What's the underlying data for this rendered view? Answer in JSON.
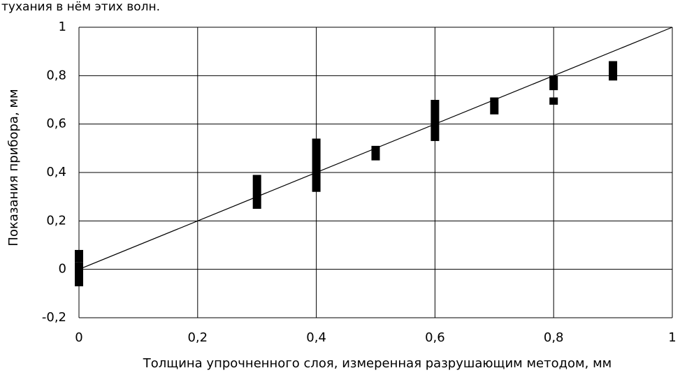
{
  "header_fragment": "тухания в нём этих волн.",
  "chart_data": {
    "type": "rangebar",
    "xlabel": "Толщина упрочненного слоя, измеренная разрушающим методом, мм",
    "ylabel": "Показания прибора, мм",
    "xlim": [
      0,
      1
    ],
    "ylim": [
      -0.2,
      1
    ],
    "xticks": [
      0,
      {
        "value": 0.2,
        "label": "0,2"
      },
      {
        "value": 0.4,
        "label": "0,4"
      },
      {
        "value": 0.6,
        "label": "0,6"
      },
      {
        "value": 0.8,
        "label": "0,8"
      },
      1
    ],
    "yticks": [
      {
        "value": -0.2,
        "label": "-0,2"
      },
      0,
      {
        "value": 0.2,
        "label": "0,2"
      },
      {
        "value": 0.4,
        "label": "0,4"
      },
      {
        "value": 0.6,
        "label": "0,6"
      },
      {
        "value": 0.8,
        "label": "0,8"
      },
      1
    ],
    "grid": true,
    "color": "#000000",
    "x": [
      0,
      0,
      0.3,
      0.4,
      0.5,
      0.6,
      0.7,
      0.8,
      0.8,
      0.9
    ],
    "low": [
      0.03,
      -0.07,
      0.25,
      0.32,
      0.45,
      0.53,
      0.64,
      0.74,
      0.68,
      0.78
    ],
    "high": [
      0.08,
      0.03,
      0.39,
      0.54,
      0.51,
      0.7,
      0.71,
      0.8,
      0.71,
      0.86
    ],
    "reference_line": {
      "x": [
        0,
        1
      ],
      "y": [
        0,
        1
      ]
    }
  }
}
